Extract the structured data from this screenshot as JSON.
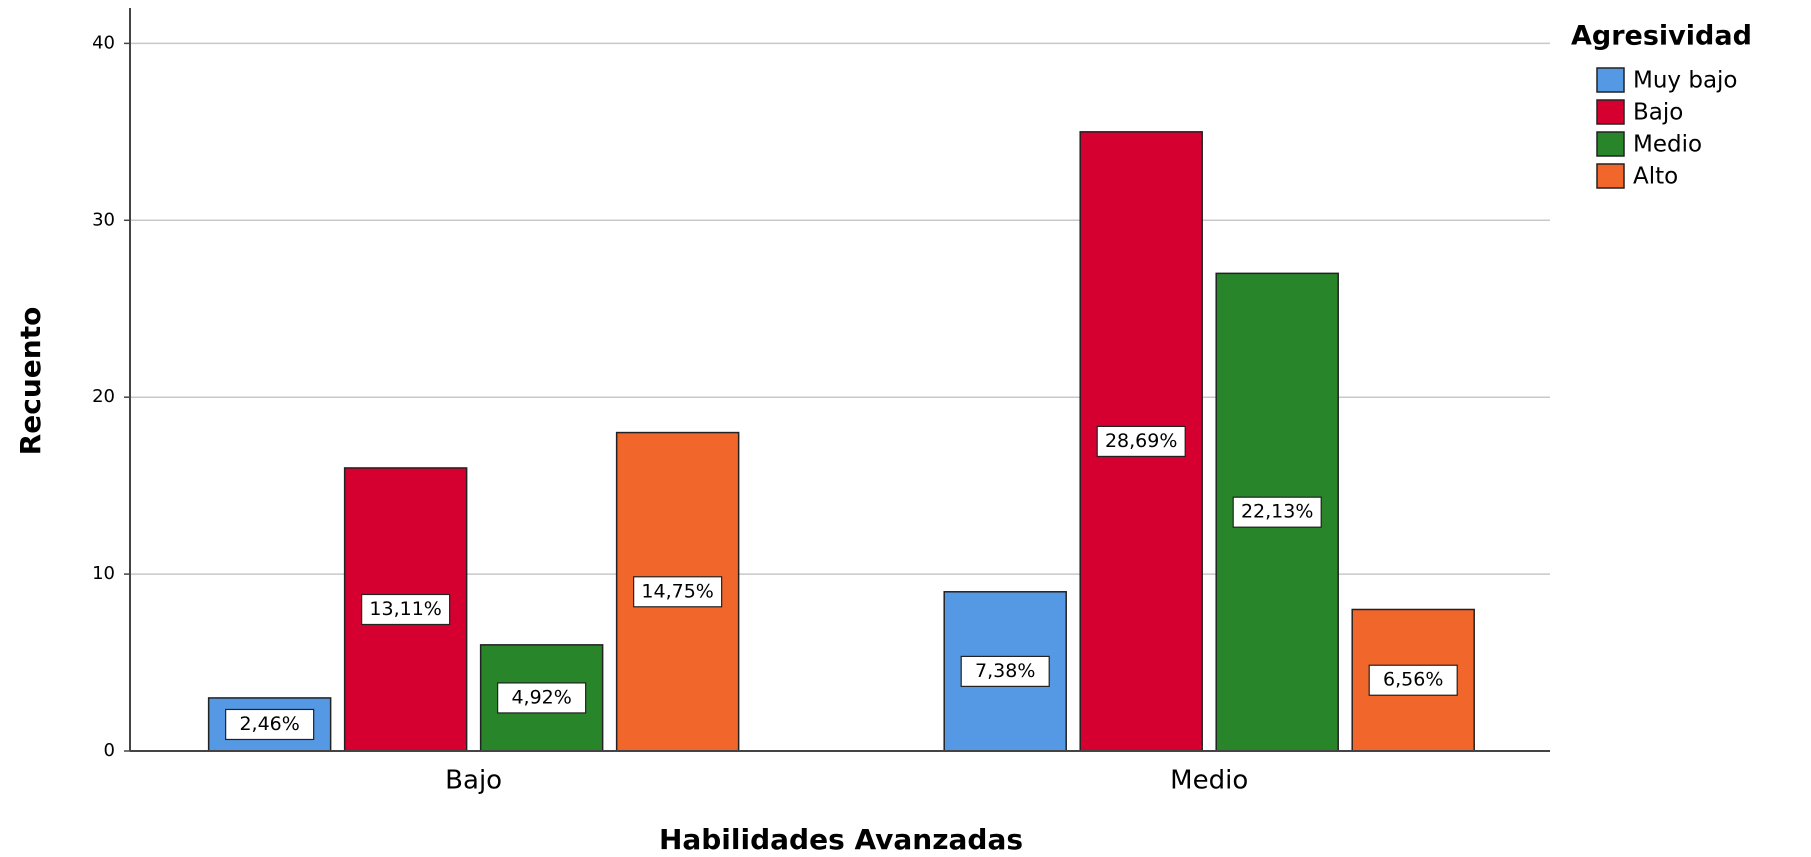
{
  "chart_data": {
    "type": "bar",
    "x_label": "Habilidades Avanzadas",
    "y_label": "Recuento",
    "legend_title": "Agresividad",
    "categories": [
      "Bajo",
      "Medio"
    ],
    "series": [
      {
        "name": "Muy bajo",
        "color": "#5599e5",
        "values": [
          3,
          9
        ],
        "percent_labels": [
          "2,46%",
          "7,38%"
        ]
      },
      {
        "name": "Bajo",
        "color": "#d5002f",
        "values": [
          16,
          35
        ],
        "percent_labels": [
          "13,11%",
          "28,69%"
        ]
      },
      {
        "name": "Medio",
        "color": "#298529",
        "values": [
          6,
          27
        ],
        "percent_labels": [
          "4,92%",
          "22,13%"
        ]
      },
      {
        "name": "Alto",
        "color": "#f0662b",
        "values": [
          18,
          8
        ],
        "percent_labels": [
          "14,75%",
          "6,56%"
        ]
      }
    ],
    "ylim": [
      0,
      42
    ],
    "yticks": [
      0,
      10,
      20,
      30,
      40
    ],
    "grid": true,
    "legend": "right"
  }
}
